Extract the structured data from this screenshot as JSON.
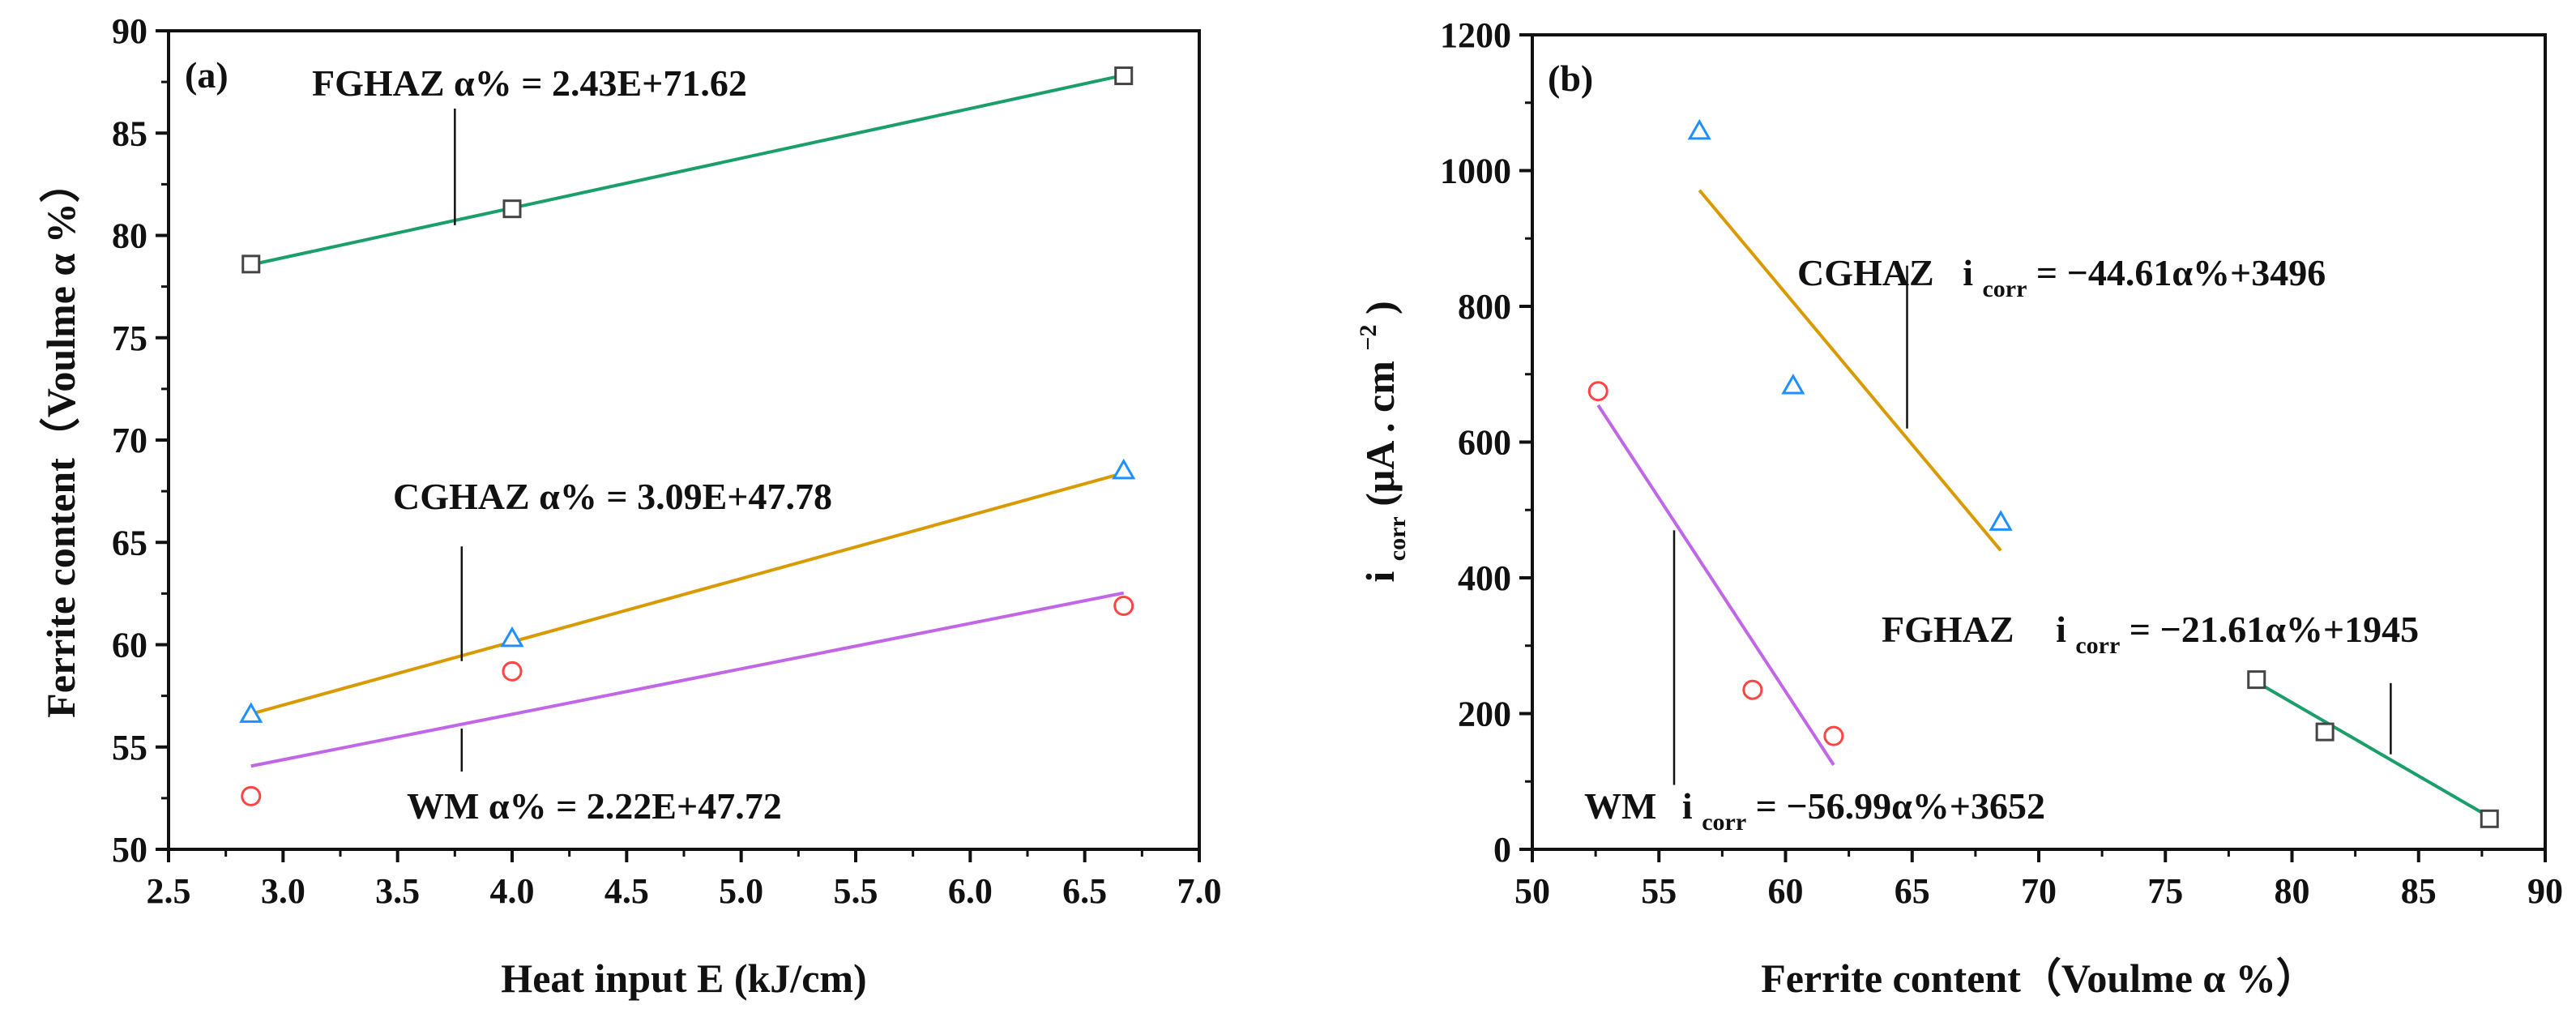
{
  "chart_data": [
    {
      "type": "scatter",
      "panel_label": "(a)",
      "xlabel": "Heat input E (kJ/cm)",
      "ylabel": "Ferrite content（Voulme α %）",
      "xlim": [
        2.5,
        7.0
      ],
      "ylim": [
        50,
        90
      ],
      "xticks": [
        "2.5",
        "3.0",
        "3.5",
        "4.0",
        "4.5",
        "5.0",
        "5.5",
        "6.0",
        "6.5",
        "7.0"
      ],
      "yticks": [
        "50",
        "55",
        "60",
        "65",
        "70",
        "75",
        "80",
        "85",
        "90"
      ],
      "series": [
        {
          "name": "FGHAZ",
          "marker": "square",
          "color": "#1a9e6a",
          "marker_color": "#444444",
          "points": [
            [
              2.86,
              78.6
            ],
            [
              4.0,
              81.3
            ],
            [
              6.67,
              87.8
            ]
          ],
          "fit": {
            "slope": 2.43,
            "intercept": 71.62,
            "x_range": [
              2.86,
              6.67
            ]
          },
          "label": "FGHAZ α% = 2.43E+71.62"
        },
        {
          "name": "CGHAZ",
          "marker": "triangle",
          "color": "#d99a00",
          "marker_color": "#1e90ff",
          "points": [
            [
              2.86,
              56.6
            ],
            [
              4.0,
              60.3
            ],
            [
              6.67,
              68.5
            ]
          ],
          "fit": {
            "slope": 3.09,
            "intercept": 47.78,
            "x_range": [
              2.86,
              6.67
            ]
          },
          "label": "CGHAZ α% = 3.09E+47.78"
        },
        {
          "name": "WM",
          "marker": "circle",
          "color": "#c266e8",
          "marker_color": "#ff4444",
          "points": [
            [
              2.86,
              52.6
            ],
            [
              4.0,
              58.7
            ],
            [
              6.67,
              61.9
            ]
          ],
          "fit": {
            "slope": 2.22,
            "intercept": 47.72,
            "x_range": [
              2.86,
              6.67
            ]
          },
          "label": "WM α% = 2.22E+47.72"
        }
      ]
    },
    {
      "type": "scatter",
      "panel_label": "(b)",
      "xlabel": "Ferrite content（Voulme α %）",
      "ylabel_main": "i",
      "ylabel_sub": "corr",
      "ylabel_rest": "(μA . cm",
      "ylabel_sup": "−2",
      "ylabel_close": ")",
      "xlim": [
        50,
        90
      ],
      "ylim": [
        0,
        1200
      ],
      "xticks": [
        "50",
        "55",
        "60",
        "65",
        "70",
        "75",
        "80",
        "85",
        "90"
      ],
      "yticks": [
        "0",
        "200",
        "400",
        "600",
        "800",
        "1000",
        "1200"
      ],
      "series": [
        {
          "name": "CGHAZ",
          "marker": "triangle",
          "color": "#d99a00",
          "marker_color": "#1e90ff",
          "points": [
            [
              56.6,
              1058
            ],
            [
              60.3,
              683
            ],
            [
              68.5,
              482
            ]
          ],
          "fit": {
            "slope": -44.61,
            "intercept": 3496,
            "x_range": [
              56.6,
              68.5
            ]
          },
          "label_name": "CGHAZ",
          "label_i": "i",
          "label_sub": "corr",
          "label_eq": " = −44.61α%+3496"
        },
        {
          "name": "WM",
          "marker": "circle",
          "color": "#c266e8",
          "marker_color": "#ff4444",
          "points": [
            [
              52.6,
              675
            ],
            [
              58.7,
              235
            ],
            [
              61.9,
              167
            ]
          ],
          "fit": {
            "slope": -56.99,
            "intercept": 3652,
            "x_range": [
              52.6,
              61.9
            ]
          },
          "label_name": "WM",
          "label_i": "i",
          "label_sub": "corr",
          "label_eq": " = −56.99α%+3652"
        },
        {
          "name": "FGHAZ",
          "marker": "square",
          "color": "#1a9e6a",
          "marker_color": "#444444",
          "points": [
            [
              78.6,
              250
            ],
            [
              81.3,
              173
            ],
            [
              87.8,
              45
            ]
          ],
          "fit": {
            "slope": -21.61,
            "intercept": 1945,
            "x_range": [
              78.6,
              87.8
            ]
          },
          "label_name": "FGHAZ",
          "label_i": "i",
          "label_sub": "corr",
          "label_eq": " = −21.61α%+1945"
        }
      ]
    }
  ]
}
